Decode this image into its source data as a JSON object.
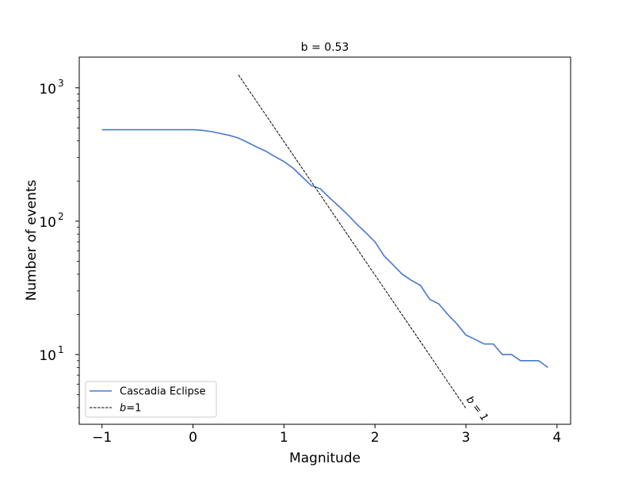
{
  "chart_data": {
    "type": "line",
    "title": "b = 0.53",
    "xlabel": "Magnitude",
    "ylabel": "Number of events",
    "xlim": [
      -1.25,
      4.15
    ],
    "ylim": [
      3,
      1700
    ],
    "yscale": "log",
    "grid": false,
    "legend_placement": "lower-left",
    "x_ticks": [
      -1,
      0,
      1,
      2,
      3,
      4
    ],
    "x_tick_labels": [
      "−1",
      "0",
      "1",
      "2",
      "3",
      "4"
    ],
    "y_ticks": [
      10,
      100,
      1000
    ],
    "y_tick_labels": [
      "10",
      "10",
      "10"
    ],
    "y_tick_exponents": [
      "1",
      "2",
      "3"
    ],
    "series": [
      {
        "name": "Cascadia Eclipse",
        "color": "#4878cf",
        "style": "solid",
        "x": [
          -1.0,
          -0.9,
          -0.8,
          -0.7,
          -0.6,
          -0.5,
          -0.4,
          -0.3,
          -0.2,
          -0.1,
          0.0,
          0.1,
          0.2,
          0.3,
          0.4,
          0.5,
          0.6,
          0.7,
          0.8,
          0.9,
          1.0,
          1.1,
          1.2,
          1.3,
          1.4,
          1.5,
          1.6,
          1.7,
          1.8,
          1.9,
          2.0,
          2.1,
          2.2,
          2.3,
          2.4,
          2.5,
          2.6,
          2.7,
          2.8,
          2.9,
          3.0,
          3.1,
          3.2,
          3.3,
          3.4,
          3.5,
          3.6,
          3.7,
          3.8,
          3.9
        ],
        "y": [
          485,
          485,
          485,
          485,
          485,
          485,
          485,
          485,
          485,
          485,
          485,
          480,
          470,
          455,
          440,
          420,
          390,
          360,
          335,
          305,
          280,
          250,
          215,
          185,
          175,
          150,
          130,
          112,
          95,
          82,
          70,
          55,
          47,
          40,
          36,
          33,
          26,
          24,
          20,
          17,
          14,
          13,
          12,
          12,
          10,
          10,
          9,
          9,
          9,
          8
        ]
      },
      {
        "name": "b=1",
        "name_italic": "b",
        "name_rest": "=1",
        "color": "#000000",
        "style": "dashed",
        "x": [
          0.5,
          3.0
        ],
        "y": [
          1250,
          3.95
        ]
      }
    ],
    "annotations": [
      {
        "text": "b = 1",
        "x": 3.0,
        "y": 4.6,
        "rotation": -52
      }
    ]
  }
}
